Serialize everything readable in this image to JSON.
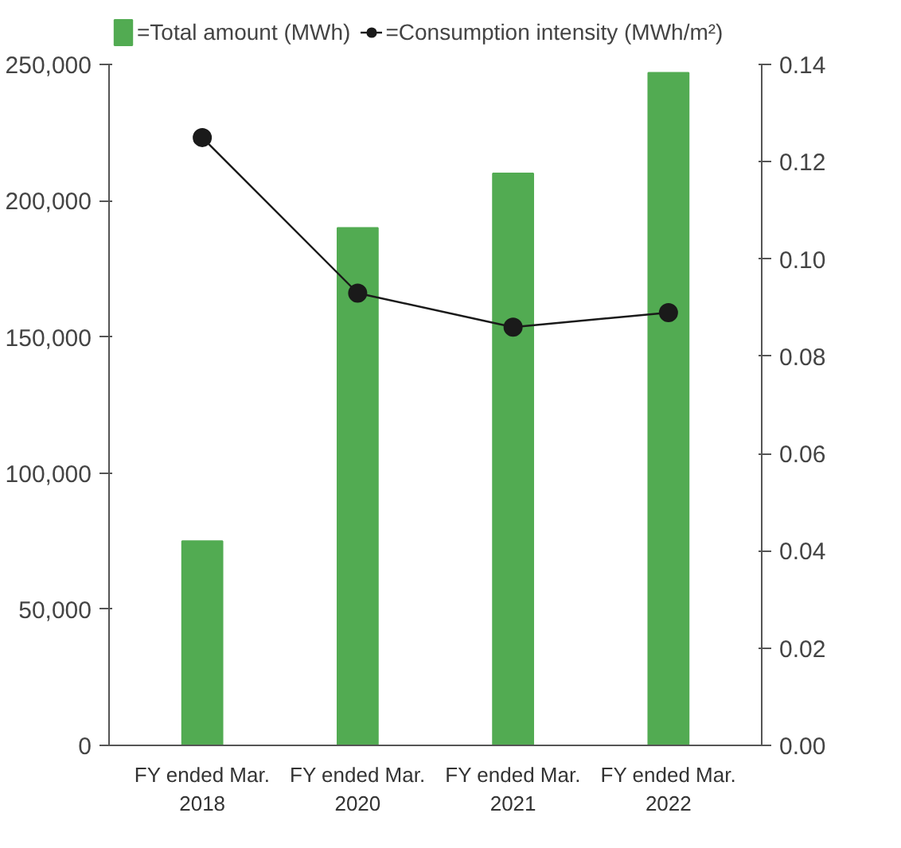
{
  "chart_data": {
    "type": "bar",
    "categories": [
      "FY ended Mar.\n2018",
      "FY ended Mar.\n2020",
      "FY ended Mar.\n2021",
      "FY ended Mar.\n2022"
    ],
    "series": [
      {
        "name": "=Total amount (MWh)",
        "color": "#52ab52",
        "values": [
          75000,
          190000,
          210000,
          247000
        ]
      },
      {
        "name": "=Consumption intensity (MWh/m²)",
        "type": "line",
        "axis": "y2",
        "color": "#1a1a1a",
        "marker": "circle",
        "values": [
          0.125,
          0.093,
          0.086,
          0.089
        ]
      }
    ],
    "ylim": [
      0,
      250000
    ],
    "yticks": [
      {
        "value": 0,
        "label": "0"
      },
      {
        "value": 50000,
        "label": "50,000"
      },
      {
        "value": 100000,
        "label": "100,000"
      },
      {
        "value": 150000,
        "label": "150,000"
      },
      {
        "value": 200000,
        "label": "200,000"
      },
      {
        "value": 250000,
        "label": "250,000"
      }
    ],
    "y2lim": [
      0,
      0.14
    ],
    "y2ticks": [
      {
        "value": 0,
        "label": "0.00"
      },
      {
        "value": 0.02,
        "label": "0.02"
      },
      {
        "value": 0.04,
        "label": "0.04"
      },
      {
        "value": 0.06,
        "label": "0.06"
      },
      {
        "value": 0.08,
        "label": "0.08"
      },
      {
        "value": 0.1,
        "label": "0.10"
      },
      {
        "value": 0.12,
        "label": "0.12"
      },
      {
        "value": 0.14,
        "label": "0.14"
      }
    ],
    "grid": false,
    "legend": "top"
  }
}
